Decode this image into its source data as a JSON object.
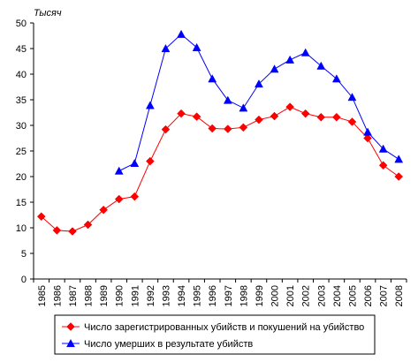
{
  "chart_data": {
    "type": "line",
    "unit_label": "Тысяч",
    "x": [
      "1985",
      "1986",
      "1987",
      "1988",
      "1989",
      "1990",
      "1991",
      "1992",
      "1993",
      "1994",
      "1995",
      "1996",
      "1997",
      "1998",
      "1999",
      "2000",
      "2001",
      "2002",
      "2003",
      "2004",
      "2005",
      "2006",
      "2007",
      "2008"
    ],
    "ylim": [
      0,
      50
    ],
    "yticks": [
      0,
      5,
      10,
      15,
      20,
      25,
      30,
      35,
      40,
      45,
      50
    ],
    "grid": false,
    "legend_position": "bottom",
    "series": [
      {
        "name": "Число зарегистрированных убийств и покушений на убийство",
        "color": "#ff0000",
        "marker": "diamond",
        "values": [
          12.2,
          9.5,
          9.3,
          10.6,
          13.5,
          15.6,
          16.1,
          23.0,
          29.2,
          32.3,
          31.7,
          29.4,
          29.3,
          29.6,
          31.1,
          31.8,
          33.6,
          32.3,
          31.6,
          31.6,
          30.7,
          27.5,
          22.2,
          20.0
        ]
      },
      {
        "name": "Число умерших в результате убийств",
        "color": "#0000ff",
        "marker": "triangle",
        "values": [
          null,
          null,
          null,
          null,
          null,
          21.1,
          22.6,
          33.9,
          45.0,
          47.8,
          45.2,
          39.1,
          34.9,
          33.4,
          38.1,
          41.0,
          42.8,
          44.2,
          41.6,
          39.1,
          35.5,
          28.7,
          25.4,
          23.4
        ]
      }
    ]
  }
}
